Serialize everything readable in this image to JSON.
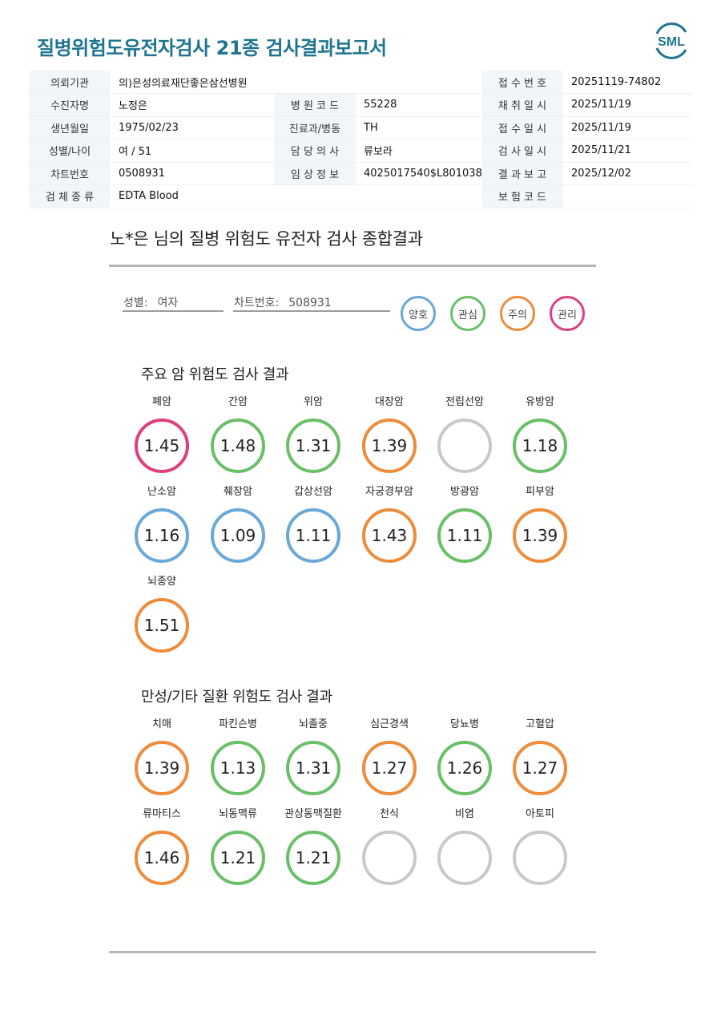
{
  "report": {
    "title": "질병위험도유전자검사 21종 검사결과보고서",
    "logo_text": "SML"
  },
  "info_rows": [
    [
      {
        "label": "의뢰기관",
        "value": "의)은성의료재단좋은삼선병원"
      },
      {
        "label": "",
        "value": ""
      },
      {
        "label": "접 수 번 호",
        "value": "20251119-74802"
      }
    ],
    [
      {
        "label": "수진자명",
        "value": "노정은"
      },
      {
        "label": "병 원 코 드",
        "value": "55228"
      },
      {
        "label": "채 취 일 시",
        "value": "2025/11/19"
      }
    ],
    [
      {
        "label": "생년월일",
        "value": "1975/02/23"
      },
      {
        "label": "진료과/병동",
        "value": "TH"
      },
      {
        "label": "접 수 일 시",
        "value": "2025/11/19"
      }
    ],
    [
      {
        "label": "성별/나이",
        "value": "여 / 51"
      },
      {
        "label": "담 당 의 사",
        "value": "류보라"
      },
      {
        "label": "검 사 일 시",
        "value": "2025/11/21"
      }
    ],
    [
      {
        "label": "차트번호",
        "value": "0508931"
      },
      {
        "label": "임 상 정 보",
        "value": "4025017540$L801038"
      },
      {
        "label": "결 과 보 고",
        "value": "2025/12/02"
      }
    ],
    [
      {
        "label": "검 체 종 류",
        "value": "EDTA Blood"
      },
      {
        "label": "",
        "value": ""
      },
      {
        "label": "보 험 코 드",
        "value": ""
      }
    ]
  ],
  "summary": {
    "title": "노*은 님의 질병 위험도 유전자 검사 종합결과",
    "gender_label": "성별:",
    "gender_value": "여자",
    "chart_label": "차트번호:",
    "chart_value": "508931"
  },
  "legend": [
    {
      "key": "good",
      "label": "양호",
      "color": "#6aa8d8"
    },
    {
      "key": "interest",
      "label": "관심",
      "color": "#6abf69"
    },
    {
      "key": "caution",
      "label": "주의",
      "color": "#ee8c3c"
    },
    {
      "key": "manage",
      "label": "관리",
      "color": "#de3f7e"
    },
    {
      "key": "none",
      "label": "",
      "color": "#c9c9c9"
    }
  ],
  "cancer_section": {
    "title": "주요 암 위험도 검사 결과",
    "items": [
      {
        "name": "폐암",
        "value": "1.45",
        "level": "manage"
      },
      {
        "name": "간암",
        "value": "1.48",
        "level": "interest"
      },
      {
        "name": "위암",
        "value": "1.31",
        "level": "interest"
      },
      {
        "name": "대장암",
        "value": "1.39",
        "level": "caution"
      },
      {
        "name": "전립선암",
        "value": "",
        "level": "none"
      },
      {
        "name": "유방암",
        "value": "1.18",
        "level": "interest"
      },
      {
        "name": "난소암",
        "value": "1.16",
        "level": "good"
      },
      {
        "name": "췌장암",
        "value": "1.09",
        "level": "good"
      },
      {
        "name": "갑상선암",
        "value": "1.11",
        "level": "good"
      },
      {
        "name": "자궁경부암",
        "value": "1.43",
        "level": "caution"
      },
      {
        "name": "방광암",
        "value": "1.11",
        "level": "interest"
      },
      {
        "name": "피부암",
        "value": "1.39",
        "level": "caution"
      },
      {
        "name": "뇌종양",
        "value": "1.51",
        "level": "caution"
      }
    ]
  },
  "chronic_section": {
    "title": "만성/기타 질환 위험도 검사 결과",
    "items": [
      {
        "name": "치매",
        "value": "1.39",
        "level": "caution"
      },
      {
        "name": "파킨슨병",
        "value": "1.13",
        "level": "interest"
      },
      {
        "name": "뇌졸중",
        "value": "1.31",
        "level": "interest"
      },
      {
        "name": "심근경색",
        "value": "1.27",
        "level": "caution"
      },
      {
        "name": "당뇨병",
        "value": "1.26",
        "level": "interest"
      },
      {
        "name": "고혈압",
        "value": "1.27",
        "level": "caution"
      },
      {
        "name": "류마티스",
        "value": "1.46",
        "level": "caution"
      },
      {
        "name": "뇌동맥류",
        "value": "1.21",
        "level": "interest"
      },
      {
        "name": "관상동맥질환",
        "value": "1.21",
        "level": "interest"
      },
      {
        "name": "천식",
        "value": "",
        "level": "none"
      },
      {
        "name": "비염",
        "value": "",
        "level": "none"
      },
      {
        "name": "아토피",
        "value": "",
        "level": "none"
      }
    ]
  }
}
